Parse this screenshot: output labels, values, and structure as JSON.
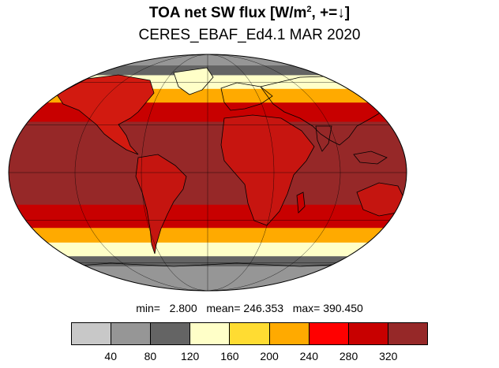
{
  "title": {
    "main_prefix": "TOA net SW flux [W/m",
    "main_sup": "2",
    "main_suffix": ", +=↓]",
    "subtitle": "CERES_EBAF_Ed4.1 MAR 2020"
  },
  "stats": {
    "min_label": "min=",
    "min_value": "2.800",
    "mean_label": "mean=",
    "mean_value": "246.353",
    "max_label": "max=",
    "max_value": "390.450"
  },
  "colorbar": {
    "colors": [
      "#c8c8c8",
      "#969696",
      "#646464",
      "#ffffc8",
      "#ffdc32",
      "#ffaa00",
      "#ff0000",
      "#c80000",
      "#962828"
    ],
    "tick_labels": [
      "40",
      "80",
      "120",
      "160",
      "200",
      "240",
      "280",
      "320"
    ]
  },
  "map": {
    "projection": "mollweide",
    "bands": [
      {
        "from_lat": 90,
        "to_lat": 75,
        "level": 1
      },
      {
        "from_lat": 75,
        "to_lat": 66,
        "level": 2
      },
      {
        "from_lat": 66,
        "to_lat": 55,
        "level": 3
      },
      {
        "from_lat": 55,
        "to_lat": 45,
        "level": 5
      },
      {
        "from_lat": 45,
        "to_lat": 32,
        "level": 7
      },
      {
        "from_lat": 32,
        "to_lat": -20,
        "level": 8
      },
      {
        "from_lat": -20,
        "to_lat": -35,
        "level": 7
      },
      {
        "from_lat": -35,
        "to_lat": -45,
        "level": 5
      },
      {
        "from_lat": -45,
        "to_lat": -55,
        "level": 3
      },
      {
        "from_lat": -55,
        "to_lat": -63,
        "level": 2
      },
      {
        "from_lat": -63,
        "to_lat": -90,
        "level": 1
      }
    ]
  }
}
